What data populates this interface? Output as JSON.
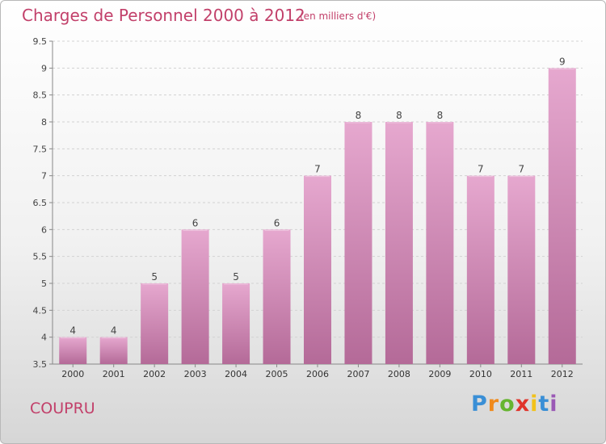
{
  "header": {
    "title": "Charges de Personnel 2000 à 2012",
    "subtitle": "(en milliers d'€)"
  },
  "footer": {
    "commune": "COUPRU",
    "logo_text": "Proxiti"
  },
  "colors": {
    "bar_top": "#e6a8cf",
    "bar_bottom": "#b46a98",
    "title": "#c2406a"
  },
  "chart_data": {
    "type": "bar",
    "title": "Charges de Personnel 2000 à 2012",
    "subtitle": "(en milliers d'€)",
    "xlabel": "",
    "ylabel": "",
    "categories": [
      "2000",
      "2001",
      "2002",
      "2003",
      "2004",
      "2005",
      "2006",
      "2007",
      "2008",
      "2009",
      "2010",
      "2011",
      "2012"
    ],
    "values": [
      4,
      4,
      5,
      6,
      5,
      6,
      7,
      8,
      8,
      8,
      7,
      7,
      9
    ],
    "data_labels": [
      "4",
      "4",
      "5",
      "6",
      "5",
      "6",
      "7",
      "8",
      "8",
      "8",
      "7",
      "7",
      "9"
    ],
    "ylim": [
      3.5,
      9.5
    ],
    "yticks": [
      3.5,
      4,
      4.5,
      5,
      5.5,
      6,
      6.5,
      7,
      7.5,
      8,
      8.5,
      9,
      9.5
    ],
    "ytick_labels": [
      "3.5",
      "4",
      "4.5",
      "5",
      "5.5",
      "6",
      "6.5",
      "7",
      "7.5",
      "8",
      "8.5",
      "9",
      "9.5"
    ],
    "grid": true,
    "legend": "none"
  }
}
